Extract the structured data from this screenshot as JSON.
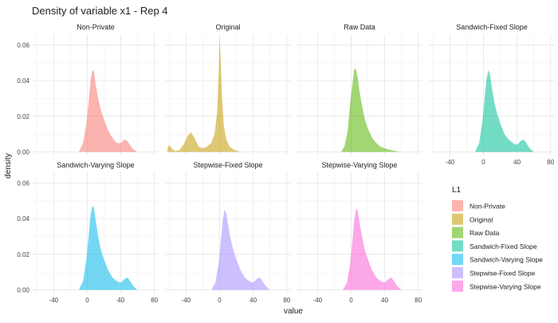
{
  "chart_data": {
    "type": "area",
    "title": "Density of variable x1 - Rep 4",
    "xlabel": "value",
    "ylabel": "density",
    "xlim": [
      -65,
      85
    ],
    "ylim": [
      -0.002,
      0.066
    ],
    "x_ticks": [
      -40,
      0,
      40,
      80
    ],
    "y_ticks": [
      0.0,
      0.02,
      0.04,
      0.06
    ],
    "y_tick_labels": [
      "0.00",
      "0.02",
      "0.04",
      "0.06"
    ],
    "grid": true,
    "legend": {
      "title": "L1",
      "placement": "right",
      "entries": [
        "Non-Private",
        "Original",
        "Raw Data",
        "Sandwich-Fixed Slope",
        "Sandwich-Varying Slope",
        "Stepwise-Fixed Slope",
        "Stepwise-Varying Slope"
      ]
    },
    "series": [
      {
        "name": "Non-Private",
        "color": "#F8766D",
        "points": [
          [
            -10,
            0
          ],
          [
            -5,
            0.005
          ],
          [
            -1,
            0.016
          ],
          [
            2,
            0.03
          ],
          [
            4,
            0.04
          ],
          [
            6,
            0.046
          ],
          [
            8,
            0.045
          ],
          [
            10,
            0.038
          ],
          [
            13,
            0.03
          ],
          [
            16,
            0.024
          ],
          [
            20,
            0.018
          ],
          [
            25,
            0.012
          ],
          [
            30,
            0.008
          ],
          [
            35,
            0.005
          ],
          [
            40,
            0.005
          ],
          [
            44,
            0.007
          ],
          [
            48,
            0.006
          ],
          [
            52,
            0.003
          ],
          [
            56,
            0.001
          ],
          [
            60,
            0
          ]
        ]
      },
      {
        "name": "Original",
        "color": "#C49A00",
        "points": [
          [
            -62,
            0.002
          ],
          [
            -60,
            0.004
          ],
          [
            -57,
            0.002
          ],
          [
            -53,
            0.0005
          ],
          [
            -48,
            0.001
          ],
          [
            -43,
            0.004
          ],
          [
            -38,
            0.009
          ],
          [
            -34,
            0.011
          ],
          [
            -30,
            0.008
          ],
          [
            -25,
            0.003
          ],
          [
            -20,
            0.002
          ],
          [
            -15,
            0.003
          ],
          [
            -10,
            0.005
          ],
          [
            -6,
            0.01
          ],
          [
            -3,
            0.022
          ],
          [
            -1,
            0.045
          ],
          [
            0,
            0.064
          ],
          [
            1,
            0.055
          ],
          [
            3,
            0.03
          ],
          [
            5,
            0.015
          ],
          [
            8,
            0.007
          ],
          [
            12,
            0.003
          ],
          [
            18,
            0.001
          ],
          [
            25,
            0
          ]
        ]
      },
      {
        "name": "Raw Data",
        "color": "#53B400",
        "points": [
          [
            -12,
            0
          ],
          [
            -8,
            0.003
          ],
          [
            -4,
            0.012
          ],
          [
            -1,
            0.028
          ],
          [
            2,
            0.04
          ],
          [
            4,
            0.047
          ],
          [
            6,
            0.046
          ],
          [
            8,
            0.041
          ],
          [
            10,
            0.034
          ],
          [
            13,
            0.026
          ],
          [
            16,
            0.019
          ],
          [
            20,
            0.013
          ],
          [
            25,
            0.008
          ],
          [
            30,
            0.005
          ],
          [
            35,
            0.003
          ],
          [
            40,
            0.002
          ],
          [
            48,
            0.001
          ],
          [
            55,
            0.0003
          ],
          [
            60,
            0
          ]
        ]
      },
      {
        "name": "Sandwich-Fixed Slope",
        "color": "#00C094",
        "points": [
          [
            -10,
            0
          ],
          [
            -5,
            0.005
          ],
          [
            -1,
            0.018
          ],
          [
            2,
            0.033
          ],
          [
            4,
            0.042
          ],
          [
            6,
            0.046
          ],
          [
            8,
            0.043
          ],
          [
            10,
            0.036
          ],
          [
            13,
            0.028
          ],
          [
            16,
            0.022
          ],
          [
            20,
            0.016
          ],
          [
            25,
            0.01
          ],
          [
            30,
            0.007
          ],
          [
            35,
            0.005
          ],
          [
            40,
            0.004
          ],
          [
            44,
            0.006
          ],
          [
            48,
            0.007
          ],
          [
            51,
            0.005
          ],
          [
            55,
            0.002
          ],
          [
            60,
            0
          ]
        ]
      },
      {
        "name": "Sandwich-Varying Slope",
        "color": "#00B6EB",
        "points": [
          [
            -10,
            0
          ],
          [
            -5,
            0.005
          ],
          [
            -1,
            0.017
          ],
          [
            2,
            0.032
          ],
          [
            4,
            0.042
          ],
          [
            6,
            0.047
          ],
          [
            8,
            0.046
          ],
          [
            10,
            0.039
          ],
          [
            13,
            0.03
          ],
          [
            16,
            0.023
          ],
          [
            20,
            0.017
          ],
          [
            25,
            0.011
          ],
          [
            30,
            0.007
          ],
          [
            35,
            0.005
          ],
          [
            40,
            0.004
          ],
          [
            44,
            0.006
          ],
          [
            48,
            0.007
          ],
          [
            51,
            0.005
          ],
          [
            55,
            0.002
          ],
          [
            60,
            0
          ]
        ]
      },
      {
        "name": "Stepwise-Fixed Slope",
        "color": "#A58AFF",
        "points": [
          [
            -10,
            0
          ],
          [
            -5,
            0.004
          ],
          [
            -1,
            0.015
          ],
          [
            2,
            0.03
          ],
          [
            4,
            0.04
          ],
          [
            6,
            0.045
          ],
          [
            8,
            0.043
          ],
          [
            10,
            0.037
          ],
          [
            13,
            0.029
          ],
          [
            16,
            0.023
          ],
          [
            20,
            0.017
          ],
          [
            25,
            0.011
          ],
          [
            30,
            0.007
          ],
          [
            35,
            0.005
          ],
          [
            40,
            0.004
          ],
          [
            44,
            0.006
          ],
          [
            48,
            0.007
          ],
          [
            51,
            0.005
          ],
          [
            55,
            0.002
          ],
          [
            60,
            0
          ]
        ]
      },
      {
        "name": "Stepwise-Varying Slope",
        "color": "#FB61D7",
        "points": [
          [
            -10,
            0
          ],
          [
            -5,
            0.004
          ],
          [
            -1,
            0.015
          ],
          [
            2,
            0.03
          ],
          [
            4,
            0.04
          ],
          [
            6,
            0.046
          ],
          [
            8,
            0.044
          ],
          [
            10,
            0.038
          ],
          [
            13,
            0.03
          ],
          [
            16,
            0.023
          ],
          [
            20,
            0.017
          ],
          [
            25,
            0.011
          ],
          [
            30,
            0.007
          ],
          [
            35,
            0.005
          ],
          [
            40,
            0.004
          ],
          [
            44,
            0.006
          ],
          [
            48,
            0.007
          ],
          [
            51,
            0.005
          ],
          [
            55,
            0.002
          ],
          [
            60,
            0
          ]
        ]
      }
    ]
  }
}
